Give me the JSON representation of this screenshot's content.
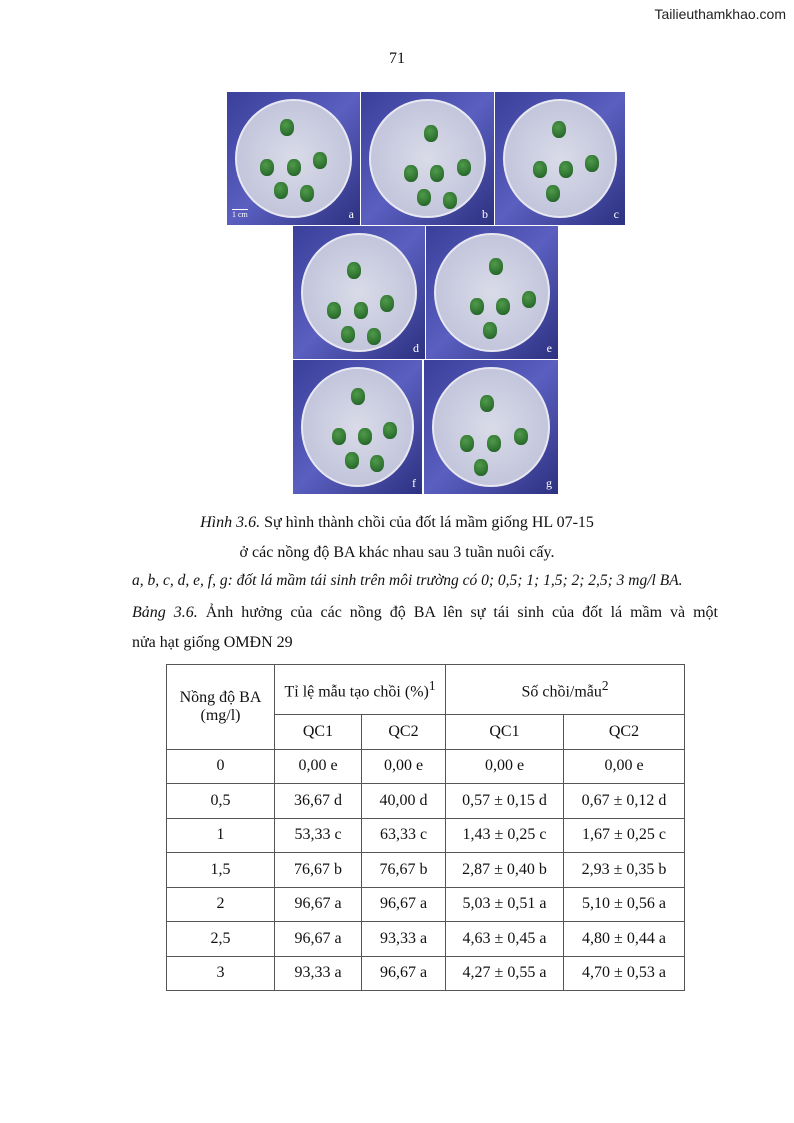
{
  "watermark": "Tailieuthamkhao.com",
  "page_number": "71",
  "figure": {
    "panels": [
      "a",
      "b",
      "c",
      "d",
      "e",
      "f",
      "g"
    ],
    "scale_bar": "1 cm",
    "caption_label": "Hình 3.6.",
    "caption_line1": " Sự hình thành chồi của đốt lá mầm giống HL 07-15",
    "caption_line2": "ở các nồng độ BA khác nhau sau 3 tuần nuôi cấy.",
    "legend": "a, b, c, d, e, f, g: đốt lá mầm tái sinh trên môi trường có 0; 0,5; 1; 1,5; 2; 2,5; 3 mg/l BA."
  },
  "table": {
    "caption_label": "Bảng 3.6.",
    "caption_line1": " Ảnh hưởng của các nồng độ BA lên sự tái sinh của đốt lá mầm và một",
    "caption_line2": "nửa hạt giống OMĐN 29",
    "header": {
      "col1": "Nồng độ BA (mg/l)",
      "group1": "Tỉ lệ mẫu tạo chồi (%)",
      "group1_sup": "1",
      "group2": "Số chồi/mẫu",
      "group2_sup": "2",
      "sub": [
        "QC1",
        "QC2",
        "QC1",
        "QC2"
      ]
    },
    "rows": [
      [
        "0",
        "0,00 e",
        "0,00 e",
        "0,00 e",
        "0,00 e"
      ],
      [
        "0,5",
        "36,67 d",
        "40,00 d",
        "0,57 ± 0,15 d",
        "0,67 ± 0,12 d"
      ],
      [
        "1",
        "53,33 c",
        "63,33 c",
        "1,43 ± 0,25 c",
        "1,67 ± 0,25 c"
      ],
      [
        "1,5",
        "76,67 b",
        "76,67 b",
        "2,87 ± 0,40 b",
        "2,93 ± 0,35 b"
      ],
      [
        "2",
        "96,67 a",
        "96,67 a",
        "5,03 ± 0,51 a",
        "5,10 ± 0,56 a"
      ],
      [
        "2,5",
        "96,67 a",
        "93,33 a",
        "4,63 ± 0,45 a",
        "4,80 ± 0,44 a"
      ],
      [
        "3",
        "93,33 a",
        "96,67 a",
        "4,27 ± 0,55 a",
        "4,70 ± 0,53 a"
      ]
    ]
  }
}
